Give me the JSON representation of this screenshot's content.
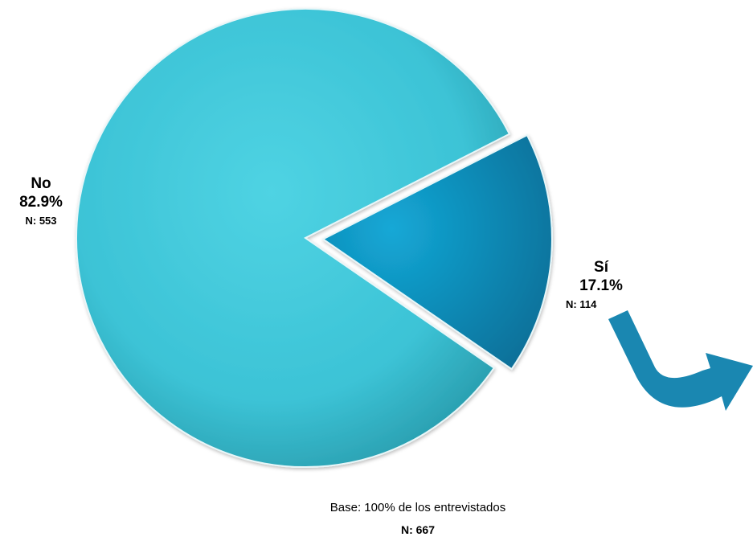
{
  "chart_data": {
    "type": "pie",
    "slices": [
      {
        "label": "Sí",
        "percent": 17.1,
        "percent_label": "17.1%",
        "n_label": "N: 114",
        "color": "#0b8fc1",
        "exploded": true
      },
      {
        "label": "No",
        "percent": 82.9,
        "percent_label": "82.9%",
        "n_label": "N: 553",
        "color": "#3cc6d9",
        "exploded": false
      }
    ],
    "base_text": "Base: 100% de los entrevistados",
    "total_label": "N: 667",
    "arrow_color": "#1a87b1"
  }
}
